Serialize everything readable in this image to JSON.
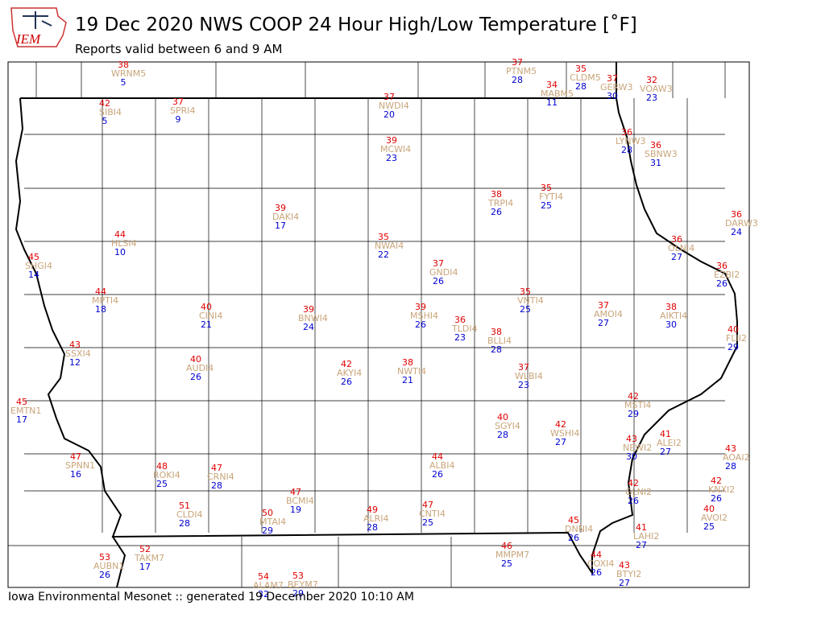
{
  "logo_text": "IEM",
  "title": "19 Dec 2020 NWS COOP 24 Hour High/Low Temperature [$^\\circ$F]",
  "title_display": "19 Dec 2020 NWS COOP 24 Hour High/Low Temperature [˚F]",
  "subtitle": "Reports valid between 6 and 9 AM",
  "footer": "Iowa Environmental Mesonet :: generated 19 December 2020 10:10 AM",
  "stations": [
    {
      "high": 38,
      "id": "WRNM5",
      "low": 5
    },
    {
      "high": 37,
      "id": "PTNM5",
      "low": 28
    },
    {
      "high": 35,
      "id": "CLDM5",
      "low": 28
    },
    {
      "high": 37,
      "id": "GERW3",
      "low": 30
    },
    {
      "high": 32,
      "id": "VOAW3",
      "low": 23
    },
    {
      "high": 34,
      "id": "MABM5",
      "low": 11
    },
    {
      "high": 42,
      "id": "SIBI4",
      "low": 5
    },
    {
      "high": 37,
      "id": "SPRI4",
      "low": 9
    },
    {
      "high": 37,
      "id": "NWDI4",
      "low": 20
    },
    {
      "high": 36,
      "id": "LYNW3",
      "low": 28
    },
    {
      "high": 36,
      "id": "SBNW3",
      "low": 31
    },
    {
      "high": 39,
      "id": "MCWI4",
      "low": 23
    },
    {
      "high": 38,
      "id": "TRPI4",
      "low": 26
    },
    {
      "high": 35,
      "id": "FYTI4",
      "low": 25
    },
    {
      "high": 39,
      "id": "DAKI4",
      "low": 17
    },
    {
      "high": 36,
      "id": "DARW3",
      "low": 24
    },
    {
      "high": 44,
      "id": "HLSI4",
      "low": 10
    },
    {
      "high": 35,
      "id": "NWAI4",
      "low": 22
    },
    {
      "high": 36,
      "id": "OLNI4",
      "low": 27
    },
    {
      "high": 45,
      "id": "SHGI4",
      "low": 14
    },
    {
      "high": 37,
      "id": "GNDI4",
      "low": 26
    },
    {
      "high": 36,
      "id": "EZBI2",
      "low": 26
    },
    {
      "high": 44,
      "id": "MPTI4",
      "low": 18
    },
    {
      "high": 35,
      "id": "VNTI4",
      "low": 25
    },
    {
      "high": 40,
      "id": "CINI4",
      "low": 21
    },
    {
      "high": 39,
      "id": "BNWI4",
      "low": 24
    },
    {
      "high": 39,
      "id": "MSHI4",
      "low": 26
    },
    {
      "high": 37,
      "id": "AMOI4",
      "low": 27
    },
    {
      "high": 38,
      "id": "AIKTI4",
      "low": 30
    },
    {
      "high": 36,
      "id": "TLDI4",
      "low": 23
    },
    {
      "high": 38,
      "id": "BLLI4",
      "low": 28
    },
    {
      "high": 40,
      "id": "FLII2",
      "low": 29
    },
    {
      "high": 43,
      "id": "SSXI4",
      "low": 12
    },
    {
      "high": 40,
      "id": "AUDI4",
      "low": 26
    },
    {
      "high": 42,
      "id": "AKYI4",
      "low": 26
    },
    {
      "high": 38,
      "id": "NWTI4",
      "low": 21
    },
    {
      "high": 37,
      "id": "WLBI4",
      "low": 23
    },
    {
      "high": 45,
      "id": "EMTN1",
      "low": 17
    },
    {
      "high": 42,
      "id": "MSTI4",
      "low": 29
    },
    {
      "high": 40,
      "id": "SGYI4",
      "low": 28
    },
    {
      "high": 42,
      "id": "WSHI4",
      "low": 27
    },
    {
      "high": 41,
      "id": "ALEI2",
      "low": 27
    },
    {
      "high": 43,
      "id": "NEWI2",
      "low": 30
    },
    {
      "high": 43,
      "id": "AOAI2",
      "low": 28
    },
    {
      "high": 47,
      "id": "SPNN1",
      "low": 16
    },
    {
      "high": 44,
      "id": "ALBI4",
      "low": 26
    },
    {
      "high": 48,
      "id": "ROKI4",
      "low": 25
    },
    {
      "high": 47,
      "id": "CRNI4",
      "low": 28
    },
    {
      "high": 42,
      "id": "GLNI2",
      "low": 26
    },
    {
      "high": 42,
      "id": "KNXI2",
      "low": 26
    },
    {
      "high": 47,
      "id": "BCMI4",
      "low": 19
    },
    {
      "high": 51,
      "id": "CLDI4",
      "low": 28
    },
    {
      "high": 49,
      "id": "ALRI4",
      "low": 28
    },
    {
      "high": 47,
      "id": "CNTI4",
      "low": 25
    },
    {
      "high": 50,
      "id": "MTAI4",
      "low": 29
    },
    {
      "high": 40,
      "id": "AVOI2",
      "low": 25
    },
    {
      "high": 45,
      "id": "DNNI4",
      "low": 26
    },
    {
      "high": 41,
      "id": "LAHI2",
      "low": 27
    },
    {
      "high": 46,
      "id": "MMPM7",
      "low": 25
    },
    {
      "high": 52,
      "id": "TAKM7",
      "low": 17
    },
    {
      "high": 53,
      "id": "AUBN1",
      "low": 26
    },
    {
      "high": 44,
      "id": "COXI4",
      "low": 26
    },
    {
      "high": 43,
      "id": "BTYI2",
      "low": 27
    },
    {
      "high": 54,
      "id": "ALAM7",
      "low": 32
    },
    {
      "high": 53,
      "id": "BEYM7",
      "low": 29
    }
  ]
}
